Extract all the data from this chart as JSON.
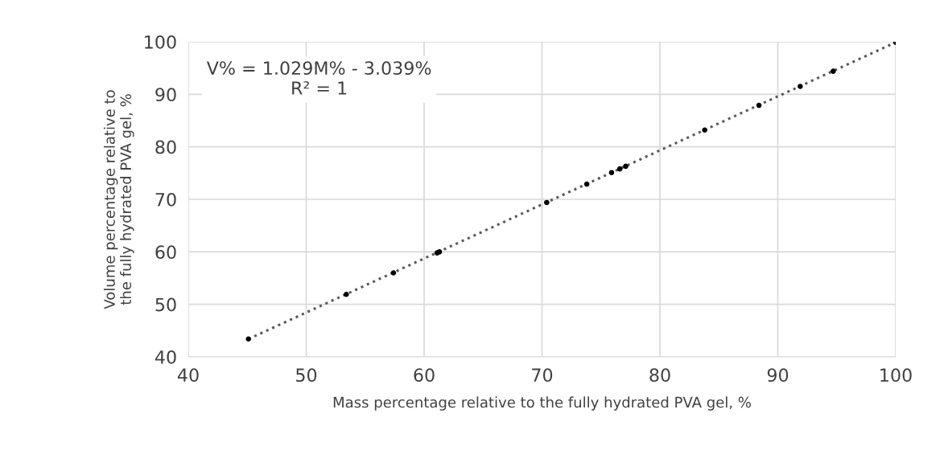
{
  "chart_data": {
    "type": "scatter",
    "xlabel": "Mass percentage relative to the fully hydrated PVA gel, %",
    "ylabel": "Volume percentage relative to\nthe fully hydrated PVA gel, %",
    "x": [
      45.1,
      53.4,
      57.4,
      61.1,
      61.3,
      70.4,
      73.8,
      75.9,
      76.6,
      77.1,
      83.8,
      88.4,
      91.9,
      94.7,
      100
    ],
    "series": [
      {
        "color": "#000000",
        "marker": "circle",
        "values": [
          43.4,
          51.9,
          56.0,
          59.8,
          60.0,
          69.4,
          72.9,
          75.1,
          75.8,
          76.3,
          83.2,
          87.9,
          91.5,
          94.4,
          99.9
        ]
      },
      {
        "type": "line",
        "color": "#595959",
        "line_style": "dotted",
        "marker": "none",
        "x": [
          45.1,
          100
        ],
        "values": [
          43.4,
          99.9
        ]
      }
    ],
    "annotations": [
      "V% = 1.029M% - 3.039%\nR² = 1"
    ],
    "xlim": [
      40,
      100
    ],
    "xticks": [
      40,
      50,
      60,
      70,
      80,
      90,
      100
    ],
    "ylim": [
      40,
      100
    ],
    "yticks": [
      40,
      50,
      60,
      70,
      80,
      90,
      100
    ],
    "grid": true,
    "legend": false
  }
}
